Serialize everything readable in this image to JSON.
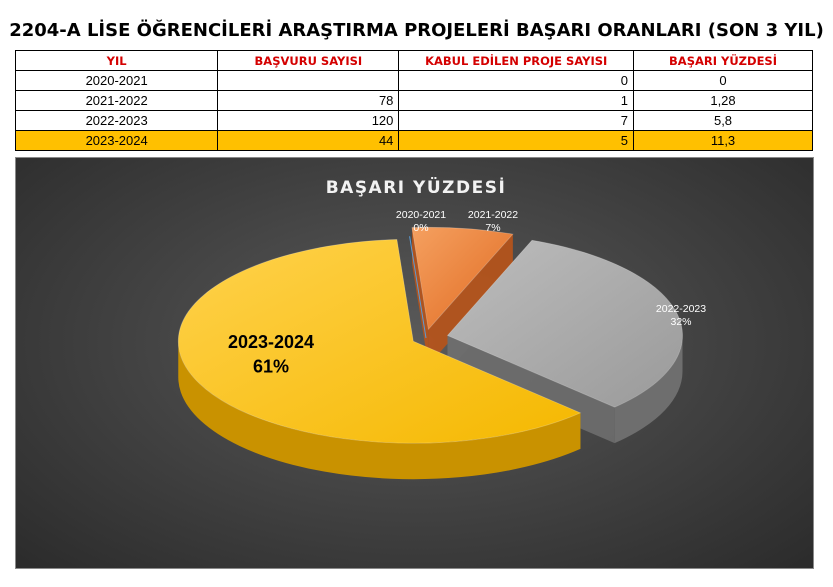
{
  "title": "2204-A LİSE ÖĞRENCİLERİ ARAŞTIRMA PROJELERİ BAŞARI ORANLARI (SON 3 YIL)",
  "table": {
    "headers": [
      "YIL",
      "BAŞVURU SAYISI",
      "KABUL EDİLEN PROJE SAYISI",
      "BAŞARI YÜZDESİ"
    ],
    "rows": [
      {
        "year": "2020-2021",
        "applications": "",
        "accepted": "0",
        "success": "0",
        "highlight": false
      },
      {
        "year": "2021-2022",
        "applications": "78",
        "accepted": "1",
        "success": "1,28",
        "highlight": false
      },
      {
        "year": "2022-2023",
        "applications": "120",
        "accepted": "7",
        "success": "5,8",
        "highlight": false
      },
      {
        "year": "2023-2024",
        "applications": "44",
        "accepted": "5",
        "success": "11,3",
        "highlight": true
      }
    ]
  },
  "chart_data": {
    "type": "pie",
    "title": "BAŞARI YÜZDESİ",
    "categories": [
      "2020-2021",
      "2021-2022",
      "2022-2023",
      "2023-2024"
    ],
    "values": [
      0,
      1.28,
      5.8,
      11.3
    ],
    "labels": [
      "0%",
      "7%",
      "32%",
      "61%"
    ],
    "colors": [
      "#5b9bd5",
      "#ed7d31",
      "#a5a5a5",
      "#ffc000"
    ],
    "three_d": true,
    "exploded": true,
    "legend": "none"
  }
}
